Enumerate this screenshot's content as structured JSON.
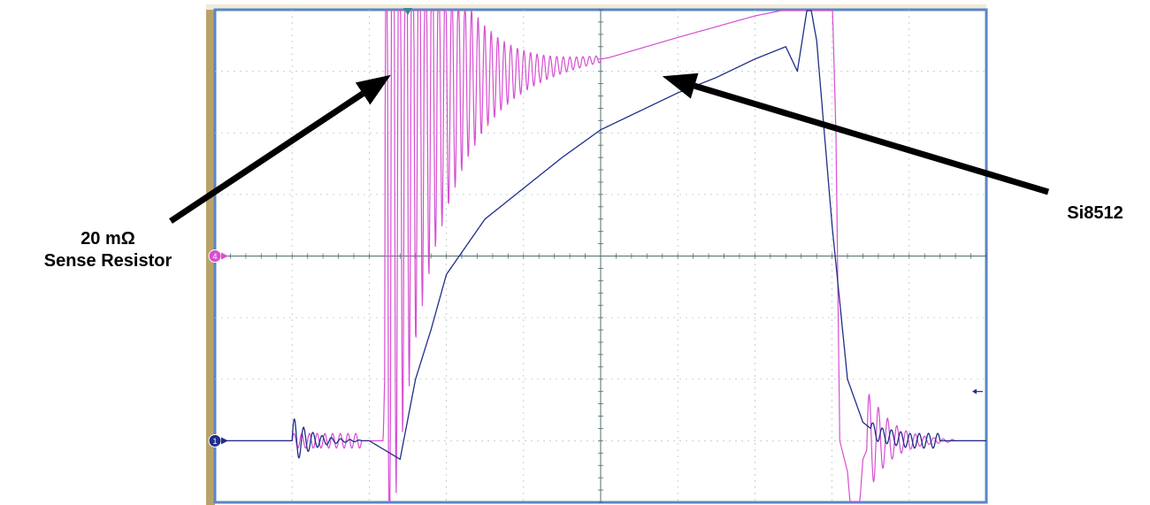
{
  "colors": {
    "background": "#ffffff",
    "bezel": "#b9a26a",
    "screen_border": "#5a86c6",
    "grid": "#b9c4c6",
    "axis_grid": "#4f6e6e",
    "sense_resistor_trace": "#d64fd2",
    "si8512_trace": "#1f2e88",
    "arrow": "#000000"
  },
  "chart_data": {
    "type": "line",
    "title": "",
    "xlabel": "",
    "ylabel": "",
    "grid": true,
    "divisions": {
      "x": 10,
      "y": 8
    },
    "xlim": [
      0,
      10
    ],
    "ylim": [
      -4,
      4
    ],
    "channel_markers": [
      {
        "label": "4",
        "color": "#d64fd2",
        "level": 0
      },
      {
        "label": "1",
        "color": "#1f2e88",
        "level": -3
      }
    ],
    "trigger_marker": {
      "shape": "triangle-down",
      "time": 2.5
    },
    "series": [
      {
        "name": "20 mΩ Sense Resistor",
        "color": "#d64fd2",
        "x": [
          0.0,
          1.0,
          1.5,
          1.7,
          2.18,
          2.22,
          2.28,
          3.0,
          4.0,
          5.0,
          5.1,
          6.0,
          7.0,
          7.4,
          7.8,
          8.0,
          8.05,
          8.1,
          8.2,
          8.3,
          8.4,
          8.5,
          8.6,
          10.0
        ],
        "y": [
          -3.0,
          -3.0,
          -3.0,
          -3.0,
          -3.0,
          -1.0,
          3.0,
          2.8,
          3.0,
          3.2,
          3.22,
          3.55,
          3.9,
          4.0,
          4.1,
          4.3,
          2.0,
          -3.0,
          -3.5,
          -5.0,
          -3.3,
          -3.0,
          -3.0,
          -3.0
        ]
      },
      {
        "name": "Si8512",
        "color": "#1f2e88",
        "x": [
          0.0,
          1.0,
          1.4,
          2.0,
          2.4,
          2.6,
          2.8,
          3.0,
          3.5,
          4.0,
          4.5,
          5.0,
          5.5,
          6.0,
          6.5,
          7.0,
          7.4,
          7.55,
          7.7,
          7.8,
          8.0,
          8.2,
          8.4,
          8.6,
          9.0,
          10.0
        ],
        "y": [
          -3.0,
          -3.0,
          -3.0,
          -3.0,
          -3.3,
          -2.0,
          -1.2,
          -0.3,
          0.6,
          1.1,
          1.6,
          2.05,
          2.35,
          2.65,
          2.9,
          3.2,
          3.4,
          3.0,
          4.2,
          3.5,
          0.5,
          -2.0,
          -2.7,
          -2.9,
          -3.0,
          -3.0
        ]
      }
    ],
    "annotations": [
      {
        "text_lines": [
          "20 mΩ",
          "Sense Resistor"
        ],
        "points_to": {
          "x": 2.28,
          "y": 2.94
        }
      },
      {
        "text_lines": [
          "Si8512"
        ],
        "points_to": {
          "x": 5.8,
          "y": 2.92
        }
      }
    ]
  }
}
